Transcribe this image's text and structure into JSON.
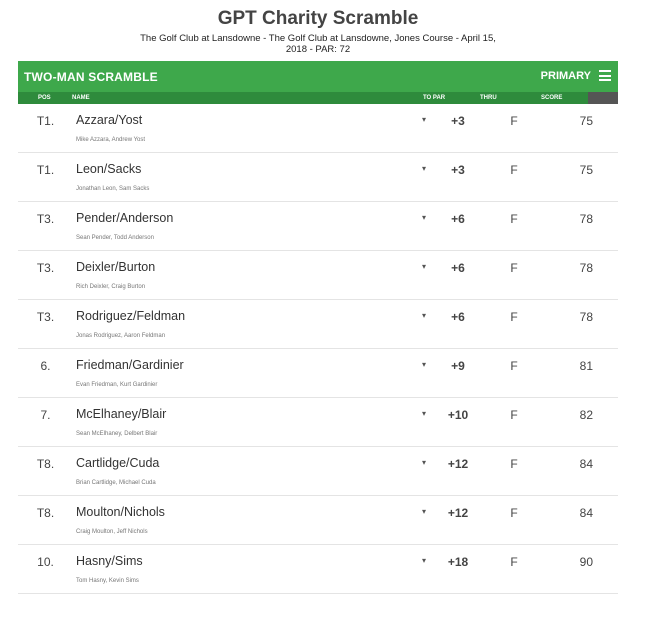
{
  "page": {
    "title": "GPT Charity Scramble",
    "subtitle": "The Golf Club at Lansdowne - The Golf Club at Lansdowne, Jones Course - April 15, 2018 - PAR: 72"
  },
  "header": {
    "event_label": "TWO-MAN SCRAMBLE",
    "round_label": "PRIMARY",
    "menu_icon": "hamburger-menu-icon"
  },
  "columns": {
    "pos": "POS",
    "name": "NAME",
    "topar": "TO PAR",
    "thru": "THRU",
    "score": "SCORE"
  },
  "colors": {
    "header_green": "#3ea84b",
    "column_green": "#2e8b3c"
  },
  "rows": [
    {
      "pos": "T1.",
      "team": "Azzara/Yost",
      "players": "Mike Azzara, Andrew Yost",
      "caret": "▾",
      "topar": "+3",
      "thru": "F",
      "score": "75"
    },
    {
      "pos": "T1.",
      "team": "Leon/Sacks",
      "players": "Jonathan Leon, Sam Sacks",
      "caret": "▾",
      "topar": "+3",
      "thru": "F",
      "score": "75"
    },
    {
      "pos": "T3.",
      "team": "Pender/Anderson",
      "players": "Sean Pender, Todd Anderson",
      "caret": "▾",
      "topar": "+6",
      "thru": "F",
      "score": "78"
    },
    {
      "pos": "T3.",
      "team": "Deixler/Burton",
      "players": "Rich Deixler, Craig Burton",
      "caret": "▾",
      "topar": "+6",
      "thru": "F",
      "score": "78"
    },
    {
      "pos": "T3.",
      "team": "Rodriguez/Feldman",
      "players": "Jonas Rodriguez, Aaron Feldman",
      "caret": "▾",
      "topar": "+6",
      "thru": "F",
      "score": "78"
    },
    {
      "pos": "6.",
      "team": "Friedman/Gardinier",
      "players": "Evan Friedman, Kurt Gardinier",
      "caret": "▾",
      "topar": "+9",
      "thru": "F",
      "score": "81"
    },
    {
      "pos": "7.",
      "team": "McElhaney/Blair",
      "players": "Sean McElhaney, Delbert Blair",
      "caret": "▾",
      "topar": "+10",
      "thru": "F",
      "score": "82"
    },
    {
      "pos": "T8.",
      "team": "Cartlidge/Cuda",
      "players": "Brian Cartlidge, Michael Cuda",
      "caret": "▾",
      "topar": "+12",
      "thru": "F",
      "score": "84"
    },
    {
      "pos": "T8.",
      "team": "Moulton/Nichols",
      "players": "Craig Moulton, Jeff Nichols",
      "caret": "▾",
      "topar": "+12",
      "thru": "F",
      "score": "84"
    },
    {
      "pos": "10.",
      "team": "Hasny/Sims",
      "players": "Tom Hasny, Kevin Sims",
      "caret": "▾",
      "topar": "+18",
      "thru": "F",
      "score": "90"
    }
  ]
}
